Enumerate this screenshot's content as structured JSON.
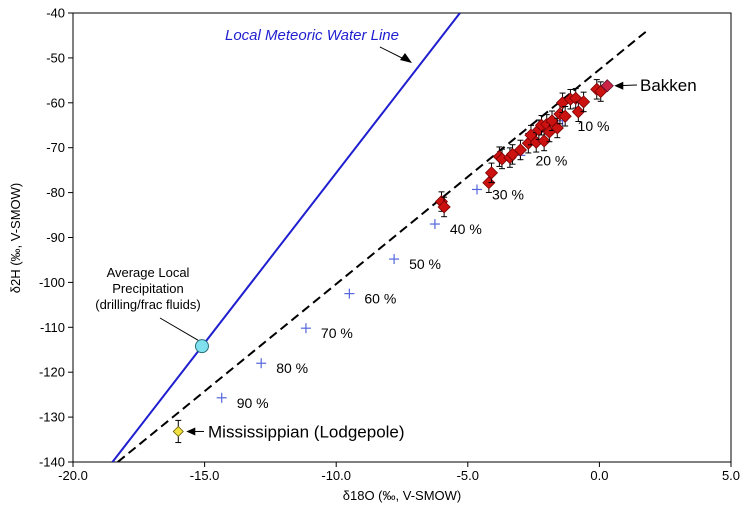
{
  "chart_data": {
    "type": "scatter",
    "title": "",
    "xlabel": "δ18O (‰, V-SMOW)",
    "ylabel": "δ2H (‰, V-SMOW)",
    "xlim": [
      -20,
      5
    ],
    "ylim": [
      -140,
      -40
    ],
    "x_ticks": [
      -20,
      -15,
      -10,
      -5,
      0,
      5
    ],
    "x_tick_labels": [
      "-20.0",
      "-15.0",
      "-10.0",
      "-5.0",
      "0.0",
      "5.0"
    ],
    "y_ticks": [
      -40,
      -50,
      -60,
      -70,
      -80,
      -90,
      -100,
      -110,
      -120,
      -130,
      -140
    ],
    "y_tick_labels": [
      "-40",
      "-50",
      "-60",
      "-70",
      "-80",
      "-90",
      "-100",
      "-110",
      "-120",
      "-130",
      "-140"
    ],
    "grid": false,
    "lmwl": {
      "label": "Local Meteoric Water Line",
      "color": "#1f1fd0",
      "points": [
        [
          -18.5,
          -140
        ],
        [
          -5.3,
          -40
        ]
      ]
    },
    "mixing_line": {
      "color": "#000000",
      "style": "dashed",
      "points": [
        [
          -18.3,
          -140
        ],
        [
          1.8,
          -44
        ]
      ]
    },
    "mixing_points": {
      "color": "#5566dd",
      "x": [
        -14.35,
        -12.85,
        -11.15,
        -9.5,
        -7.8,
        -6.25,
        -4.65,
        -3.0,
        -1.4
      ],
      "y": [
        -125.7,
        -118.0,
        -110.2,
        -102.5,
        -94.8,
        -87.0,
        -79.3,
        -71.7,
        -64.0
      ],
      "labels": [
        "90 %",
        "80 %",
        "70 %",
        "60 %",
        "50 %",
        "40 %",
        "30 %",
        "20 %",
        "10 %"
      ]
    },
    "samples": {
      "name": "Bakken",
      "color": "#cc1111",
      "error": 1.5,
      "points": [
        [
          -6.0,
          -82.0
        ],
        [
          -5.9,
          -83.2
        ],
        [
          -4.2,
          -77.8
        ],
        [
          -4.1,
          -75.6
        ],
        [
          -3.8,
          -72.0
        ],
        [
          -3.7,
          -72.5
        ],
        [
          -3.4,
          -72.2
        ],
        [
          -3.3,
          -71.5
        ],
        [
          -3.0,
          -70.5
        ],
        [
          -2.7,
          -69.0
        ],
        [
          -2.6,
          -67.2
        ],
        [
          -2.4,
          -68.8
        ],
        [
          -2.3,
          -66.0
        ],
        [
          -2.2,
          -65.0
        ],
        [
          -2.1,
          -68.5
        ],
        [
          -2.0,
          -64.8
        ],
        [
          -1.9,
          -66.5
        ],
        [
          -1.8,
          -64.0
        ],
        [
          -1.6,
          -65.6
        ],
        [
          -1.5,
          -62.5
        ],
        [
          -1.4,
          -60.0
        ],
        [
          -1.3,
          -63.0
        ],
        [
          -1.1,
          -59.2
        ],
        [
          -0.9,
          -59.0
        ],
        [
          -0.8,
          -62.0
        ],
        [
          -0.6,
          -59.8
        ],
        [
          -0.1,
          -57.0
        ],
        [
          0.05,
          -57.5
        ]
      ]
    },
    "bakken_endmember": {
      "x": 0.3,
      "y": -56.2,
      "color": "#cc2244",
      "label": "Bakken"
    },
    "precipitation": {
      "x": -15.1,
      "y": -114.2,
      "color": "#7fe0ee",
      "label_lines": [
        "Average Local",
        "Precipitation",
        "(drilling/frac fluids)"
      ]
    },
    "mississippian": {
      "x": -16.0,
      "y": -133.2,
      "error": 1.8,
      "color": "#f0e040",
      "label": "Mississippian (Lodgepole)"
    }
  }
}
